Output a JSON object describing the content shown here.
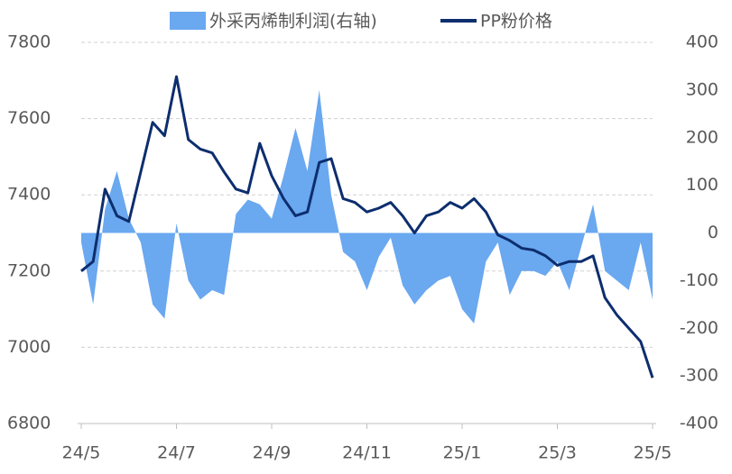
{
  "chart_data": {
    "type": "area-line",
    "categories": [
      "24/5",
      null,
      null,
      null,
      null,
      null,
      null,
      null,
      "24/7",
      null,
      null,
      null,
      null,
      null,
      null,
      null,
      "24/9",
      null,
      null,
      null,
      null,
      null,
      null,
      null,
      "24/11",
      null,
      null,
      null,
      null,
      null,
      null,
      null,
      "25/1",
      null,
      null,
      null,
      null,
      null,
      null,
      null,
      "25/3",
      null,
      null,
      null,
      null,
      null,
      null,
      null,
      "25/5"
    ],
    "series": [
      {
        "name": "外采丙烯制利润(右轴)",
        "type": "area",
        "axis": "y2",
        "color": "#6aa8f0",
        "values": [
          -20,
          -150,
          50,
          130,
          30,
          -20,
          -150,
          -180,
          20,
          -100,
          -140,
          -120,
          -130,
          40,
          70,
          60,
          30,
          120,
          220,
          130,
          300,
          80,
          -40,
          -60,
          -120,
          -50,
          -10,
          -110,
          -150,
          -120,
          -100,
          -90,
          -160,
          -190,
          -60,
          -20,
          -130,
          -80,
          -80,
          -90,
          -60,
          -120,
          -30,
          60,
          -80,
          -100,
          -120,
          -20,
          -140
        ]
      },
      {
        "name": "PP粉价格",
        "type": "line",
        "axis": "y",
        "color": "#0d2e6e",
        "values": [
          7200,
          7225,
          7415,
          7345,
          7330,
          7460,
          7590,
          7555,
          7710,
          7545,
          7520,
          7510,
          7460,
          7415,
          7405,
          7535,
          7450,
          7390,
          7345,
          7355,
          7485,
          7495,
          7390,
          7380,
          7355,
          7365,
          7380,
          7345,
          7300,
          7345,
          7355,
          7380,
          7365,
          7390,
          7355,
          7295,
          7280,
          7260,
          7255,
          7240,
          7215,
          7225,
          7225,
          7240,
          7130,
          7085,
          7050,
          7015,
          6920
        ]
      }
    ],
    "ylim": [
      6800,
      7800
    ],
    "yticks": [
      6800,
      7000,
      7200,
      7400,
      7600,
      7800
    ],
    "y2lim": [
      -400,
      400
    ],
    "y2ticks": [
      -400,
      -300,
      -200,
      -100,
      0,
      100,
      200,
      300,
      400
    ],
    "grid": true,
    "legend": "top"
  }
}
